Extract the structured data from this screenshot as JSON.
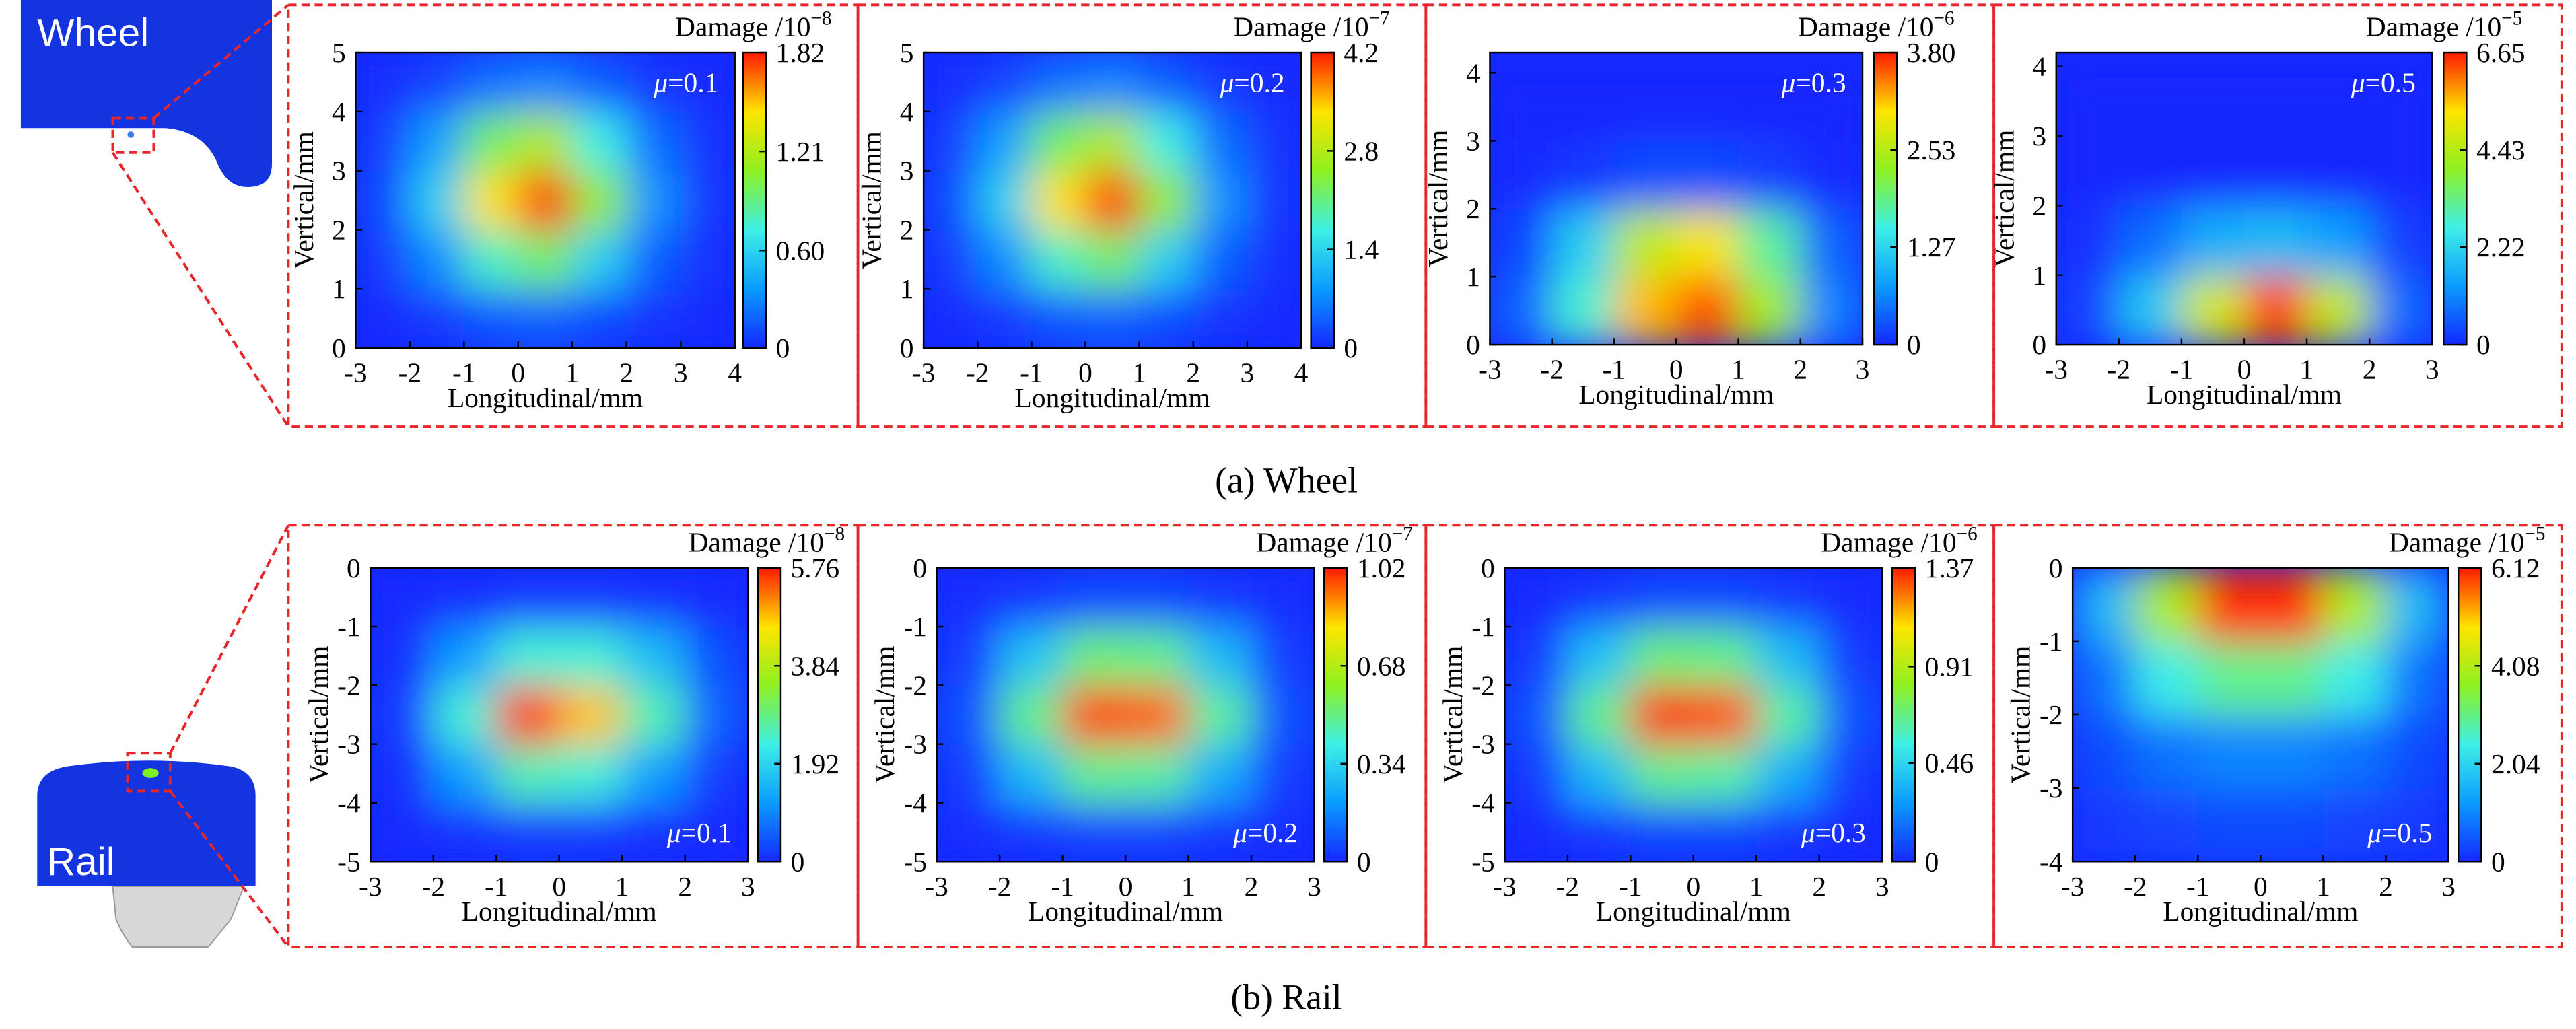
{
  "captions": [
    "(a) Wheel",
    "(b) Rail"
  ],
  "icons": {
    "wheel": "Wheel",
    "rail": "Rail"
  },
  "colormap": [
    "#1428ff",
    "#0a9cff",
    "#3ef0e6",
    "#8ef020",
    "#ffe400",
    "#ff1a00"
  ],
  "chart_data": [
    {
      "type": "heatmap",
      "xlabel": "Longitudinal/mm",
      "ylabel": "Vertical/mm",
      "colorbar_title": "Damage /10",
      "colorbar_exponent": "−8",
      "annotation_symbol": "μ",
      "annotation_text": "=0.1",
      "annotation_corner": "upper right",
      "xlim": [
        -3,
        4
      ],
      "xticks": [
        -3,
        -2,
        -1,
        0,
        1,
        2,
        3,
        4
      ],
      "ylim": [
        0,
        5
      ],
      "yticks": [
        0,
        1,
        2,
        3,
        4,
        5
      ],
      "clim": [
        0,
        1.82
      ],
      "cticks": [
        0,
        {
          "value": 0.6,
          "label": "0.60"
        },
        1.21,
        1.82
      ],
      "x": [
        -2.5,
        -1.5,
        -0.5,
        0.5,
        1.5,
        2.5,
        3.5
      ],
      "y": [
        0.5,
        1.5,
        2.5,
        3.5,
        4.5
      ],
      "z": [
        [
          0.01,
          0.06,
          0.15,
          0.19,
          0.12,
          0.04,
          0.01
        ],
        [
          0.07,
          0.32,
          0.79,
          0.97,
          0.59,
          0.18,
          0.03
        ],
        [
          0.12,
          0.59,
          1.45,
          1.79,
          1.1,
          0.34,
          0.05
        ],
        [
          0.08,
          0.39,
          0.97,
          1.2,
          0.73,
          0.23,
          0.04
        ],
        [
          0.02,
          0.09,
          0.23,
          0.29,
          0.17,
          0.05,
          0.01
        ]
      ]
    },
    {
      "type": "heatmap",
      "xlabel": "Longitudinal/mm",
      "ylabel": "Vertical/mm",
      "colorbar_title": "Damage /10",
      "colorbar_exponent": "−7",
      "annotation_symbol": "μ",
      "annotation_text": "=0.2",
      "annotation_corner": "upper right",
      "xlim": [
        -3,
        4
      ],
      "xticks": [
        -3,
        -2,
        -1,
        0,
        1,
        2,
        3,
        4
      ],
      "ylim": [
        0,
        5
      ],
      "yticks": [
        0,
        1,
        2,
        3,
        4,
        5
      ],
      "clim": [
        0,
        4.2
      ],
      "cticks": [
        0,
        1.4,
        2.8,
        4.2
      ],
      "x": [
        -2.5,
        -1.5,
        -0.5,
        0.5,
        1.5,
        2.5,
        3.5
      ],
      "y": [
        0.5,
        1.5,
        2.5,
        3.5,
        4.5
      ],
      "z": [
        [
          0.02,
          0.14,
          0.35,
          0.44,
          0.28,
          0.09,
          0.02
        ],
        [
          0.16,
          0.74,
          1.82,
          2.24,
          1.36,
          0.42,
          0.07
        ],
        [
          0.28,
          1.36,
          3.35,
          4.13,
          2.54,
          0.79,
          0.12
        ],
        [
          0.18,
          0.9,
          2.24,
          2.77,
          1.69,
          0.53,
          0.09
        ],
        [
          0.05,
          0.21,
          0.53,
          0.67,
          0.39,
          0.12,
          0.02
        ]
      ]
    },
    {
      "type": "heatmap",
      "xlabel": "Longitudinal/mm",
      "ylabel": "Vertical/mm",
      "colorbar_title": "Damage /10",
      "colorbar_exponent": "−6",
      "annotation_symbol": "μ",
      "annotation_text": "=0.3",
      "annotation_corner": "upper right",
      "xlim": [
        -3,
        3
      ],
      "xticks": [
        -3,
        -2,
        -1,
        0,
        1,
        2,
        3
      ],
      "ylim": [
        0,
        4.3
      ],
      "yticks": [
        0,
        1,
        2,
        3,
        4
      ],
      "clim": [
        0,
        3.8
      ],
      "cticks": [
        0,
        1.27,
        2.53,
        {
          "value": 3.8,
          "label": "3.80"
        }
      ],
      "x": [
        -2.5,
        -1.5,
        -0.5,
        0.5,
        1.5,
        2.5
      ],
      "y": [
        0.5,
        1.5,
        2.5,
        3.5
      ],
      "z": [
        [
          0.4,
          1.6,
          3.2,
          3.6,
          2.4,
          0.6
        ],
        [
          0.2,
          1.2,
          2.6,
          3.0,
          1.8,
          0.4
        ],
        [
          0.02,
          0.1,
          0.25,
          0.25,
          0.15,
          0.02
        ],
        [
          0,
          0,
          0,
          0,
          0,
          0
        ]
      ]
    },
    {
      "type": "heatmap",
      "xlabel": "Longitudinal/mm",
      "ylabel": "Vertical/mm",
      "colorbar_title": "Damage /10",
      "colorbar_exponent": "−5",
      "annotation_symbol": "μ",
      "annotation_text": "=0.5",
      "annotation_corner": "upper right",
      "xlim": [
        -3,
        3
      ],
      "xticks": [
        -3,
        -2,
        -1,
        0,
        1,
        2,
        3
      ],
      "ylim": [
        0,
        4.2
      ],
      "yticks": [
        0,
        1,
        2,
        3,
        4
      ],
      "clim": [
        0,
        6.65
      ],
      "cticks": [
        0,
        2.22,
        4.43,
        6.65
      ],
      "x": [
        -2.5,
        -1.5,
        -0.5,
        0.5,
        1.5,
        2.5
      ],
      "y": [
        0.5,
        1.5,
        2.5,
        3.5
      ],
      "z": [
        [
          0.3,
          2.0,
          4.8,
          6.4,
          4.6,
          0.8
        ],
        [
          0.1,
          0.8,
          1.6,
          1.8,
          1.4,
          0.3
        ],
        [
          0,
          0,
          0,
          0,
          0,
          0
        ],
        [
          0,
          0,
          0,
          0,
          0,
          0
        ]
      ]
    },
    {
      "type": "heatmap",
      "xlabel": "Longitudinal/mm",
      "ylabel": "Vertical/mm",
      "colorbar_title": "Damage /10",
      "colorbar_exponent": "−8",
      "annotation_symbol": "μ",
      "annotation_text": "=0.1",
      "annotation_corner": "lower right",
      "xlim": [
        -3,
        3
      ],
      "xticks": [
        -3,
        -2,
        -1,
        0,
        1,
        2,
        3
      ],
      "ylim": [
        -5,
        0
      ],
      "yticks": [
        -5,
        -4,
        -3,
        -2,
        -1,
        0
      ],
      "clim": [
        0,
        5.76
      ],
      "cticks": [
        0,
        1.92,
        3.84,
        5.76
      ],
      "x": [
        -2.5,
        -1.5,
        -0.5,
        0.5,
        1.5,
        2.5
      ],
      "y": [
        -4.5,
        -3.5,
        -2.5,
        -1.5,
        -0.5
      ],
      "z": [
        [
          0.02,
          0.1,
          0.2,
          0.2,
          0.1,
          0.02
        ],
        [
          0.1,
          1.2,
          2.6,
          2.4,
          1.2,
          0.2
        ],
        [
          0.2,
          2.4,
          5.6,
          4.8,
          2.6,
          0.6
        ],
        [
          0.1,
          1.2,
          2.4,
          2.4,
          1.6,
          0.4
        ],
        [
          0.01,
          0.05,
          0.15,
          0.15,
          0.1,
          0.02
        ]
      ]
    },
    {
      "type": "heatmap",
      "xlabel": "Longitudinal/mm",
      "ylabel": "Vertical/mm",
      "colorbar_title": "Damage /10",
      "colorbar_exponent": "−7",
      "annotation_symbol": "μ",
      "annotation_text": "=0.2",
      "annotation_corner": "lower right",
      "xlim": [
        -3,
        3
      ],
      "xticks": [
        -3,
        -2,
        -1,
        0,
        1,
        2,
        3
      ],
      "ylim": [
        -5,
        0
      ],
      "yticks": [
        -5,
        -4,
        -3,
        -2,
        -1,
        0
      ],
      "clim": [
        0,
        1.02
      ],
      "cticks": [
        0,
        0.34,
        0.68,
        1.02
      ],
      "x": [
        -2.5,
        -1.5,
        -0.5,
        0.5,
        1.5,
        2.5
      ],
      "y": [
        -4.5,
        -3.5,
        -2.5,
        -1.5,
        -0.5
      ],
      "z": [
        [
          0.01,
          0.03,
          0.05,
          0.05,
          0.03,
          0.01
        ],
        [
          0.04,
          0.28,
          0.5,
          0.48,
          0.25,
          0.04
        ],
        [
          0.08,
          0.5,
          0.98,
          0.95,
          0.48,
          0.08
        ],
        [
          0.04,
          0.3,
          0.52,
          0.5,
          0.28,
          0.04
        ],
        [
          0.01,
          0.03,
          0.06,
          0.06,
          0.03,
          0.01
        ]
      ]
    },
    {
      "type": "heatmap",
      "xlabel": "Longitudinal/mm",
      "ylabel": "Vertical/mm",
      "colorbar_title": "Damage /10",
      "colorbar_exponent": "−6",
      "annotation_symbol": "μ",
      "annotation_text": "=0.3",
      "annotation_corner": "lower right",
      "xlim": [
        -3,
        3
      ],
      "xticks": [
        -3,
        -2,
        -1,
        0,
        1,
        2,
        3
      ],
      "ylim": [
        -5,
        0
      ],
      "yticks": [
        -5,
        -4,
        -3,
        -2,
        -1,
        0
      ],
      "clim": [
        0,
        1.37
      ],
      "cticks": [
        0,
        0.46,
        0.91,
        1.37
      ],
      "x": [
        -2.5,
        -1.5,
        -0.5,
        0.5,
        1.5,
        2.5
      ],
      "y": [
        -4.5,
        -3.5,
        -2.5,
        -1.5,
        -0.5
      ],
      "z": [
        [
          0.01,
          0.04,
          0.07,
          0.07,
          0.04,
          0.01
        ],
        [
          0.05,
          0.38,
          0.67,
          0.64,
          0.34,
          0.05
        ],
        [
          0.11,
          0.67,
          1.35,
          1.3,
          0.64,
          0.11
        ],
        [
          0.05,
          0.4,
          0.7,
          0.67,
          0.38,
          0.05
        ],
        [
          0.01,
          0.04,
          0.08,
          0.08,
          0.04,
          0.01
        ]
      ]
    },
    {
      "type": "heatmap",
      "xlabel": "Longitudinal/mm",
      "ylabel": "Vertical/mm",
      "colorbar_title": "Damage /10",
      "colorbar_exponent": "−5",
      "annotation_symbol": "μ",
      "annotation_text": "=0.5",
      "annotation_corner": "lower right",
      "xlim": [
        -3,
        3
      ],
      "xticks": [
        -3,
        -2,
        -1,
        0,
        1,
        2,
        3
      ],
      "ylim": [
        -4,
        0
      ],
      "yticks": [
        -4,
        -3,
        -2,
        -1,
        0
      ],
      "clim": [
        0,
        6.12
      ],
      "cticks": [
        0,
        2.04,
        4.08,
        6.12
      ],
      "x": [
        -2.5,
        -1.5,
        -0.5,
        0.5,
        1.5,
        2.5
      ],
      "y": [
        -3.5,
        -2.5,
        -1.5,
        -0.5
      ],
      "z": [
        [
          0.2,
          0.3,
          0.4,
          0.4,
          0.3,
          0.2
        ],
        [
          0.4,
          0.8,
          1.0,
          1.0,
          0.8,
          0.4
        ],
        [
          0.8,
          2.4,
          3.0,
          3.0,
          2.4,
          0.8
        ],
        [
          1.6,
          4.0,
          6.0,
          6.0,
          4.0,
          1.6
        ]
      ]
    }
  ]
}
